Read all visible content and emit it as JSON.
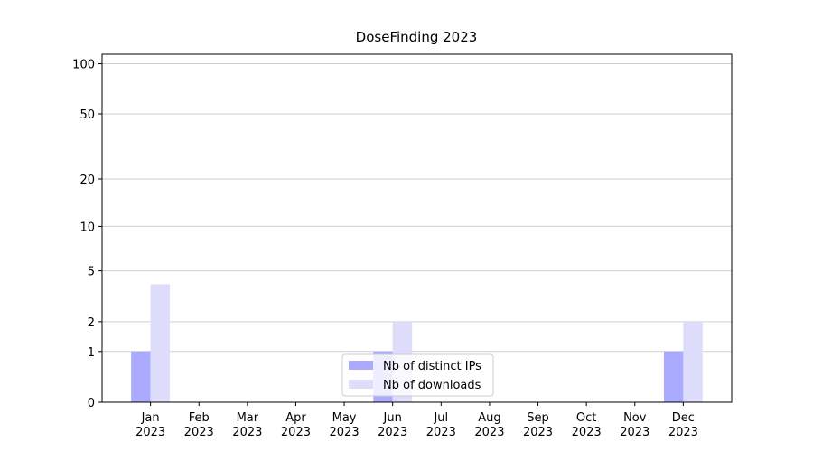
{
  "chart_data": {
    "type": "bar",
    "title": "DoseFinding 2023",
    "categories": [
      "Jan 2023",
      "Feb 2023",
      "Mar 2023",
      "Apr 2023",
      "May 2023",
      "Jun 2023",
      "Jul 2023",
      "Aug 2023",
      "Sep 2023",
      "Oct 2023",
      "Nov 2023",
      "Dec 2023"
    ],
    "series": [
      {
        "name": "Nb of distinct IPs",
        "color": "#aaaaff",
        "values": [
          1,
          0,
          0,
          0,
          0,
          1,
          0,
          0,
          0,
          0,
          0,
          1
        ]
      },
      {
        "name": "Nb of downloads",
        "color": "#ddddfb",
        "values": [
          4,
          0,
          0,
          0,
          0,
          2,
          0,
          0,
          0,
          0,
          0,
          2
        ]
      }
    ],
    "yscale": "log1p",
    "ylim": [
      0,
      114
    ],
    "yticks": [
      0,
      1,
      2,
      5,
      10,
      20,
      50,
      100
    ],
    "grid": true,
    "legend": "lower center"
  }
}
